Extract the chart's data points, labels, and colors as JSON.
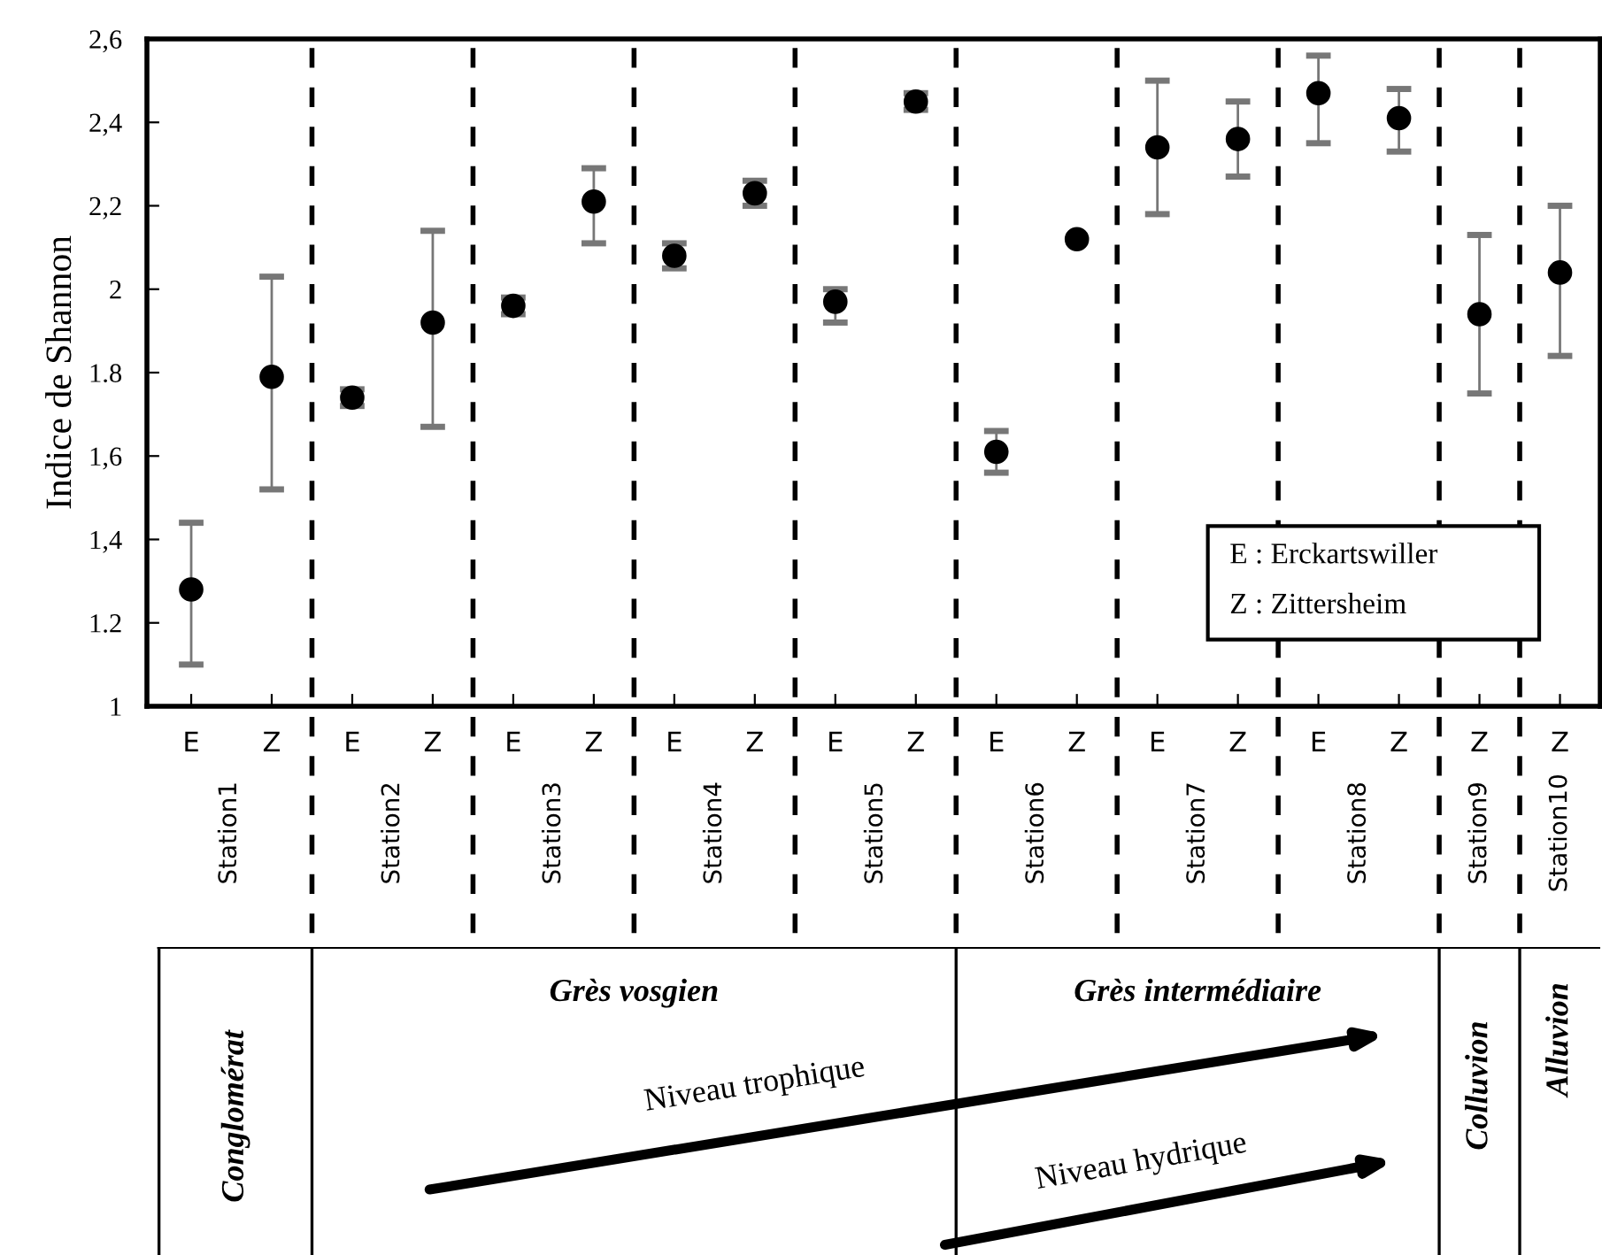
{
  "chart_data": {
    "type": "scatter",
    "ylabel": "Indice de Shannon",
    "categories": [
      "E",
      "Z",
      "E",
      "Z",
      "E",
      "Z",
      "E",
      "Z",
      "E",
      "Z",
      "E",
      "Z",
      "E",
      "Z",
      "E",
      "Z",
      "Z",
      "Z"
    ],
    "values": [
      1.28,
      1.79,
      1.74,
      1.92,
      1.96,
      2.21,
      2.08,
      2.23,
      1.97,
      2.45,
      1.61,
      2.12,
      2.34,
      2.36,
      2.47,
      2.41,
      1.94,
      2.04
    ],
    "errors": [
      [
        1.1,
        1.44
      ],
      [
        1.52,
        2.03
      ],
      [
        1.72,
        1.76
      ],
      [
        1.67,
        2.14
      ],
      [
        1.94,
        1.98
      ],
      [
        2.11,
        2.29
      ],
      [
        2.05,
        2.11
      ],
      [
        2.2,
        2.26
      ],
      [
        1.92,
        2.0
      ],
      [
        2.43,
        2.47
      ],
      [
        1.56,
        1.66
      ],
      null,
      [
        2.18,
        2.5
      ],
      [
        2.27,
        2.45
      ],
      [
        2.35,
        2.56
      ],
      [
        2.33,
        2.48
      ],
      [
        1.75,
        2.13
      ],
      [
        1.84,
        2.2
      ]
    ],
    "color": "#000000",
    "marker": "circle",
    "grid": false,
    "legend": false,
    "ylim": [
      1,
      2.6
    ],
    "yticks": [
      1,
      {
        "value": 1.2,
        "label": "1.2"
      },
      {
        "value": 1.4,
        "label": "1,4"
      },
      {
        "value": 1.6,
        "label": "1,6"
      },
      {
        "value": 1.8,
        "label": "1.8"
      },
      2,
      {
        "value": 2.2,
        "label": "2,2"
      },
      {
        "value": 2.4,
        "label": "2,4"
      },
      {
        "value": 2.6,
        "label": "2,6"
      }
    ],
    "annotations": [
      "E : Erckartswiller",
      "Z : Zittersheim",
      "Station1",
      "Station2",
      "Station3",
      "Station4",
      "Station5",
      "Station6",
      "Station7",
      "Station8",
      "Station9",
      "Station10",
      "Conglomérat",
      "Grès vosgien",
      "Grès intermédiaire",
      "Colluvion",
      "Alluvion",
      "Niveau trophique",
      "Niveau hydrique"
    ]
  }
}
